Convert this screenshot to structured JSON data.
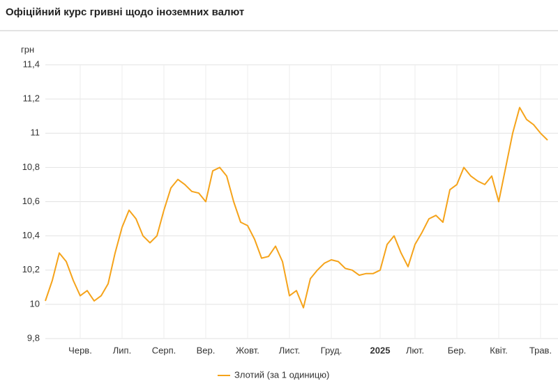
{
  "chart_data": {
    "type": "line",
    "title": "Офіційний курс гривні щодо іноземних валют",
    "y_unit": "грн",
    "categories": [
      null,
      null,
      null,
      null,
      null,
      "Черв.",
      null,
      null,
      null,
      null,
      null,
      "Лип.",
      null,
      null,
      null,
      null,
      null,
      "Серп.",
      null,
      null,
      null,
      null,
      null,
      "Вер.",
      null,
      null,
      null,
      null,
      null,
      "Жовт.",
      null,
      null,
      null,
      null,
      null,
      "Лист.",
      null,
      null,
      null,
      null,
      null,
      "Груд.",
      null,
      null,
      null,
      null,
      null,
      null,
      "2025",
      null,
      null,
      null,
      null,
      "Лют.",
      null,
      null,
      null,
      null,
      null,
      "Бер.",
      null,
      null,
      null,
      null,
      null,
      "Квіт.",
      null,
      null,
      null,
      null,
      null,
      "Трав.",
      null
    ],
    "series": [
      {
        "name": "Злотий (за 1 одиницю)",
        "color": "#f5a31a",
        "values": [
          10.02,
          10.14,
          10.3,
          10.25,
          10.14,
          10.05,
          10.08,
          10.02,
          10.05,
          10.12,
          10.3,
          10.45,
          10.55,
          10.5,
          10.4,
          10.36,
          10.4,
          10.55,
          10.68,
          10.73,
          10.7,
          10.66,
          10.65,
          10.6,
          10.78,
          10.8,
          10.75,
          10.6,
          10.48,
          10.46,
          10.38,
          10.27,
          10.28,
          10.34,
          10.25,
          10.05,
          10.08,
          9.98,
          10.15,
          10.2,
          10.24,
          10.26,
          10.25,
          10.21,
          10.2,
          10.17,
          10.18,
          10.18,
          10.2,
          10.35,
          10.4,
          10.3,
          10.22,
          10.35,
          10.42,
          10.5,
          10.52,
          10.48,
          10.67,
          10.7,
          10.8,
          10.75,
          10.72,
          10.7,
          10.75,
          10.6,
          10.8,
          11.0,
          11.15,
          11.08,
          11.05,
          11.0,
          10.96
        ]
      }
    ],
    "ylim": [
      9.8,
      11.4
    ],
    "yticks": [
      {
        "value": 9.8,
        "label": "9,8"
      },
      10,
      {
        "value": 10.2,
        "label": "10,2"
      },
      {
        "value": 10.4,
        "label": "10,4"
      },
      {
        "value": 10.6,
        "label": "10,6"
      },
      {
        "value": 10.8,
        "label": "10,8"
      },
      11,
      {
        "value": 11.2,
        "label": "11,2"
      },
      {
        "value": 11.4,
        "label": "11,4"
      }
    ],
    "grid": true,
    "legend": "bottom"
  }
}
